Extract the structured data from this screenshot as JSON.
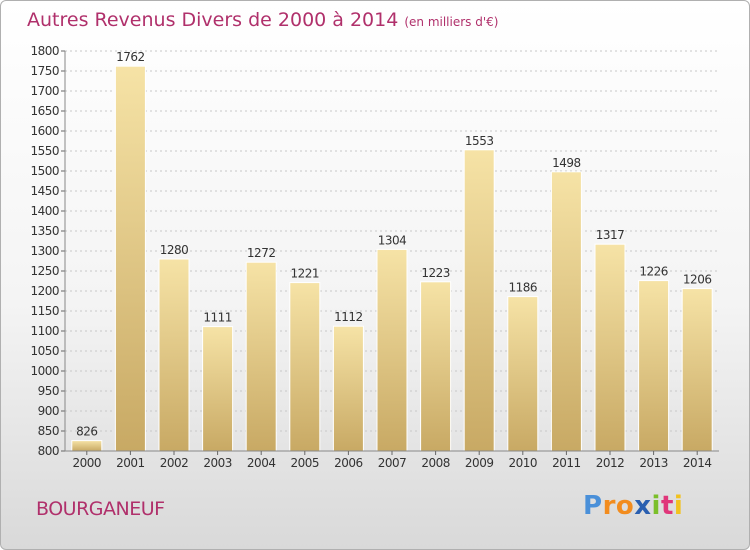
{
  "title": "Autres Revenus Divers de 2000 à 2014",
  "subtitle": "(en milliers d'€)",
  "place": "BOURGANEUF",
  "logo": {
    "letters": [
      "P",
      "r",
      "o",
      "x",
      "i",
      "t",
      "i"
    ],
    "colors": [
      "#4a90d9",
      "#f28c1e",
      "#f28c1e",
      "#2a5fb0",
      "#7bbf2a",
      "#e0367a",
      "#f2c21e"
    ]
  },
  "colors": {
    "bar_light": "#f6e3a6",
    "bar_dark": "#c8a964",
    "grid": "#c8c8c8",
    "text": "#333333",
    "accent": "#b0306b"
  },
  "chart_data": {
    "type": "bar",
    "categories": [
      "2000",
      "2001",
      "2002",
      "2003",
      "2004",
      "2005",
      "2006",
      "2007",
      "2008",
      "2009",
      "2010",
      "2011",
      "2012",
      "2013",
      "2014"
    ],
    "values": [
      826,
      1762,
      1280,
      1111,
      1272,
      1221,
      1112,
      1304,
      1223,
      1553,
      1186,
      1498,
      1317,
      1226,
      1206
    ],
    "title": "Autres Revenus Divers de 2000 à 2014",
    "xlabel": "",
    "ylabel": "",
    "ylim": [
      800,
      1800
    ],
    "ytick_step": 50,
    "grid": true,
    "data_labels": true
  }
}
